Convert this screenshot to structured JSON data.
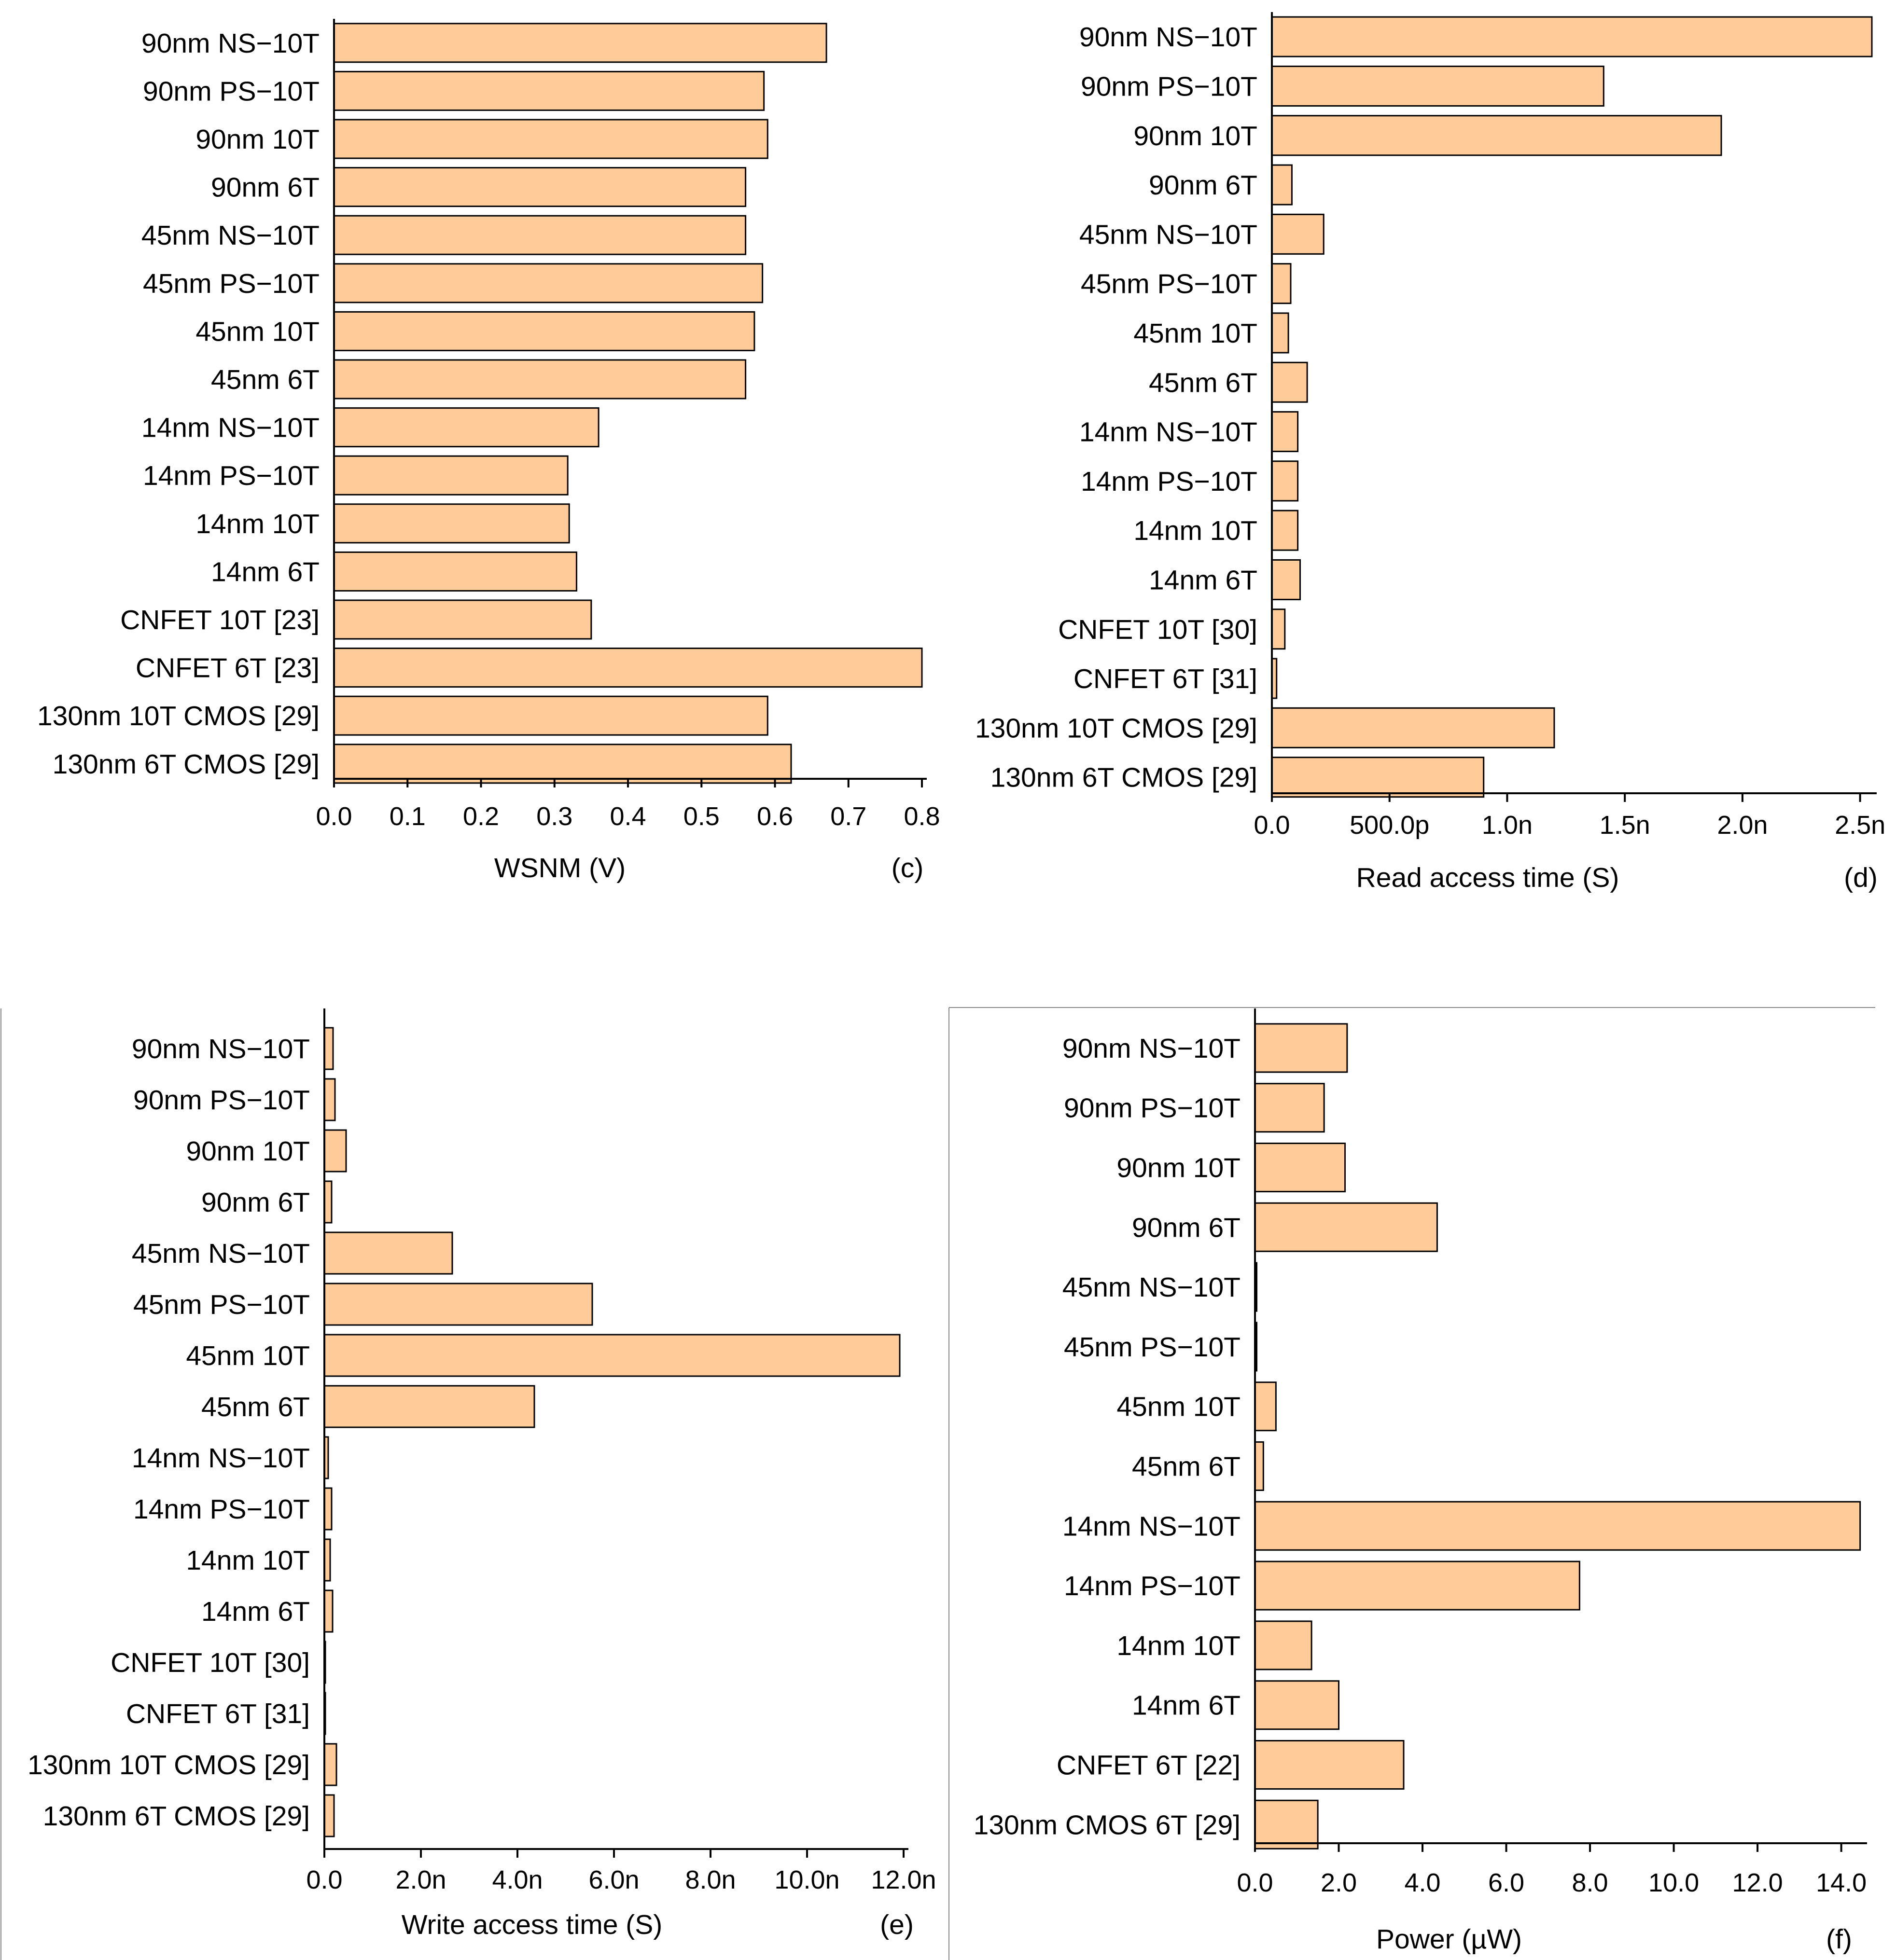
{
  "colors": {
    "bar_fill": "#FFCC99",
    "bar_stroke": "#000000",
    "axis": "#000000",
    "panel_border": "#888888"
  },
  "chart_data": [
    {
      "id": "c",
      "type": "bar",
      "orientation": "horizontal",
      "panel_label": "(c)",
      "xlabel": "WSNM (V)",
      "xlim": [
        0,
        0.8
      ],
      "ticks": [
        0,
        0.1,
        0.2,
        0.3,
        0.4,
        0.5,
        0.6,
        0.7,
        0.8
      ],
      "tick_labels": [
        "0.0",
        "0.1",
        "0.2",
        "0.3",
        "0.4",
        "0.5",
        "0.6",
        "0.7",
        "0.8"
      ],
      "categories": [
        "90nm NS−10T",
        "90nm PS−10T",
        "90nm 10T",
        "90nm 6T",
        "45nm NS−10T",
        "45nm PS−10T",
        "45nm 10T",
        "45nm 6T",
        "14nm NS−10T",
        "14nm PS−10T",
        "14nm 10T",
        "14nm 6T",
        "CNFET 10T [23]",
        "CNFET 6T [23]",
        "130nm 10T CMOS [29]",
        "130nm 6T CMOS [29]"
      ],
      "values": [
        0.67,
        0.585,
        0.59,
        0.56,
        0.56,
        0.583,
        0.572,
        0.56,
        0.36,
        0.318,
        0.32,
        0.33,
        0.35,
        0.8,
        0.59,
        0.622
      ]
    },
    {
      "id": "d",
      "type": "bar",
      "orientation": "horizontal",
      "panel_label": "(d)",
      "xlabel": "Read access time (S)",
      "xlim": [
        0,
        2.55
      ],
      "ticks": [
        0,
        0.5,
        1.0,
        1.5,
        2.0,
        2.5
      ],
      "tick_labels": [
        "0.0",
        "500.0p",
        "1.0n",
        "1.5n",
        "2.0n",
        "2.5n"
      ],
      "categories": [
        "90nm NS−10T",
        "90nm PS−10T",
        "90nm 10T",
        "90nm 6T",
        "45nm NS−10T",
        "45nm PS−10T",
        "45nm 10T",
        "45nm 6T",
        "14nm NS−10T",
        "14nm PS−10T",
        "14nm 10T",
        "14nm 6T",
        "CNFET 10T [30]",
        "CNFET 6T [31]",
        "130nm 10T CMOS [29]",
        "130nm 6T CMOS [29]"
      ],
      "values": [
        2.55,
        1.41,
        1.91,
        0.085,
        0.22,
        0.08,
        0.07,
        0.15,
        0.11,
        0.11,
        0.11,
        0.12,
        0.055,
        0.02,
        1.2,
        0.9
      ]
    },
    {
      "id": "e",
      "type": "bar",
      "orientation": "horizontal",
      "panel_label": "(e)",
      "xlabel": "Write access time (S)",
      "xlim": [
        0,
        12.0
      ],
      "ticks": [
        0,
        2,
        4,
        6,
        8,
        10,
        12
      ],
      "tick_labels": [
        "0.0",
        "2.0n",
        "4.0n",
        "6.0n",
        "8.0n",
        "10.0n",
        "12.0n"
      ],
      "categories": [
        "90nm NS−10T",
        "90nm PS−10T",
        "90nm 10T",
        "90nm 6T",
        "45nm NS−10T",
        "45nm PS−10T",
        "45nm 10T",
        "45nm 6T",
        "14nm NS−10T",
        "14nm PS−10T",
        "14nm 10T",
        "14nm 6T",
        "CNFET 10T [30]",
        "CNFET 6T [31]",
        "130nm 10T CMOS [29]",
        "130nm 6T CMOS [29]"
      ],
      "values": [
        0.18,
        0.22,
        0.45,
        0.15,
        2.65,
        5.55,
        11.92,
        4.35,
        0.08,
        0.15,
        0.12,
        0.17,
        0.02,
        0.02,
        0.25,
        0.2
      ]
    },
    {
      "id": "f",
      "type": "bar",
      "orientation": "horizontal",
      "panel_label": "(f)",
      "xlabel": "Power (µW)",
      "xlim": [
        0,
        14.5
      ],
      "ticks": [
        0,
        2,
        4,
        6,
        8,
        10,
        12,
        14
      ],
      "tick_labels": [
        "0.0",
        "2.0",
        "4.0",
        "6.0",
        "8.0",
        "10.0",
        "12.0",
        "14.0"
      ],
      "categories": [
        "90nm NS−10T",
        "90nm PS−10T",
        "90nm 10T",
        "90nm 6T",
        "45nm NS−10T",
        "45nm PS−10T",
        "45nm 10T",
        "45nm 6T",
        "14nm NS−10T",
        "14nm PS−10T",
        "14nm 10T",
        "14nm 6T",
        "CNFET 6T [22]",
        "130nm CMOS 6T [29]"
      ],
      "values": [
        2.2,
        1.65,
        2.15,
        4.35,
        0.04,
        0.04,
        0.5,
        0.2,
        14.45,
        7.75,
        1.35,
        2.0,
        3.55,
        1.5
      ]
    }
  ]
}
